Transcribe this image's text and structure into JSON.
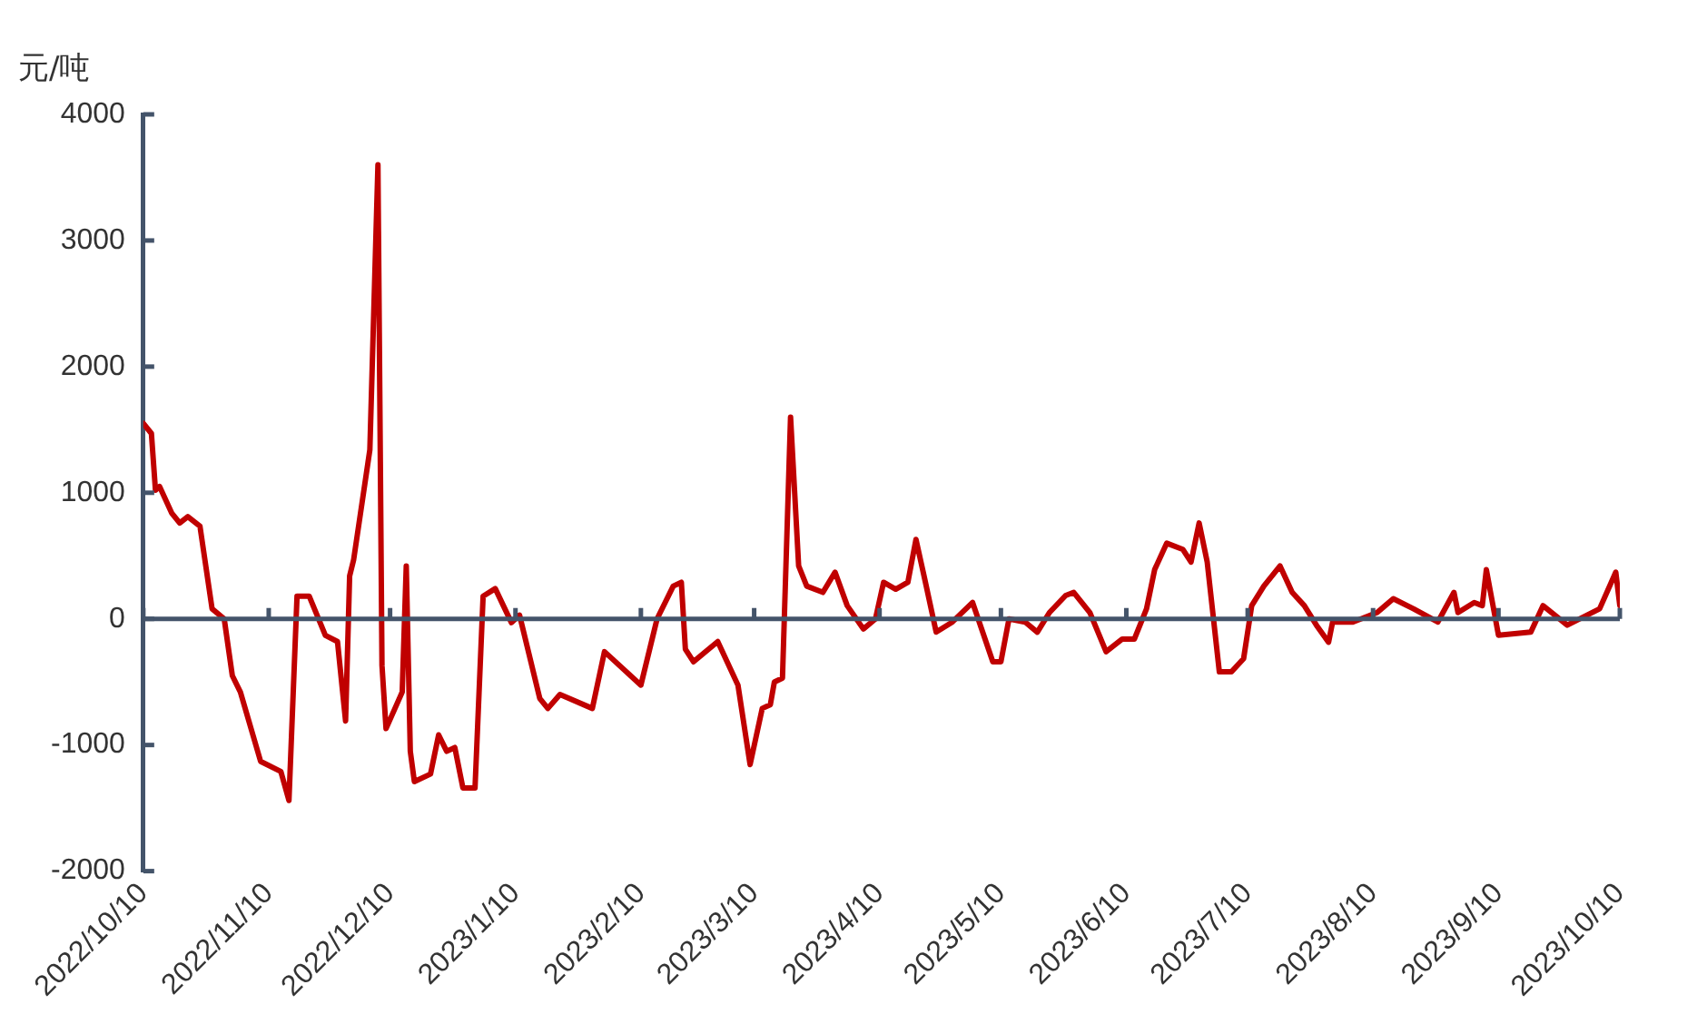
{
  "chart_data": {
    "type": "line",
    "ylabel": "元/吨",
    "x": [
      "2022-10-10",
      "2022-10-12",
      "2022-10-13",
      "2022-10-14",
      "2022-10-17",
      "2022-10-19",
      "2022-10-21",
      "2022-10-24",
      "2022-10-27",
      "2022-10-30",
      "2022-11-01",
      "2022-11-03",
      "2022-11-08",
      "2022-11-13",
      "2022-11-15",
      "2022-11-17",
      "2022-11-20",
      "2022-11-24",
      "2022-11-27",
      "2022-11-29",
      "2022-11-30",
      "2022-12-01",
      "2022-12-05",
      "2022-12-07",
      "2022-12-08",
      "2022-12-09",
      "2022-12-13",
      "2022-12-14",
      "2022-12-15",
      "2022-12-16",
      "2022-12-20",
      "2022-12-22",
      "2022-12-24",
      "2022-12-26",
      "2022-12-28",
      "2022-12-31",
      "2023-01-02",
      "2023-01-05",
      "2023-01-09",
      "2023-01-11",
      "2023-01-16",
      "2023-01-18",
      "2023-01-21",
      "2023-01-29",
      "2023-02-01",
      "2023-02-10",
      "2023-02-14",
      "2023-02-18",
      "2023-02-20",
      "2023-02-21",
      "2023-02-23",
      "2023-03-01",
      "2023-03-06",
      "2023-03-09",
      "2023-03-12",
      "2023-03-14",
      "2023-03-15",
      "2023-03-17",
      "2023-03-19",
      "2023-03-21",
      "2023-03-23",
      "2023-03-27",
      "2023-03-30",
      "2023-04-02",
      "2023-04-06",
      "2023-04-09",
      "2023-04-11",
      "2023-04-14",
      "2023-04-17",
      "2023-04-19",
      "2023-04-21",
      "2023-04-24",
      "2023-04-28",
      "2023-05-03",
      "2023-05-08",
      "2023-05-10",
      "2023-05-12",
      "2023-05-16",
      "2023-05-19",
      "2023-05-22",
      "2023-05-26",
      "2023-05-28",
      "2023-06-01",
      "2023-06-05",
      "2023-06-09",
      "2023-06-12",
      "2023-06-15",
      "2023-06-17",
      "2023-06-20",
      "2023-06-24",
      "2023-06-26",
      "2023-06-28",
      "2023-06-30",
      "2023-07-03",
      "2023-07-06",
      "2023-07-09",
      "2023-07-11",
      "2023-07-14",
      "2023-07-18",
      "2023-07-21",
      "2023-07-24",
      "2023-07-27",
      "2023-07-30",
      "2023-07-31",
      "2023-08-05",
      "2023-08-11",
      "2023-08-15",
      "2023-08-20",
      "2023-08-26",
      "2023-08-30",
      "2023-08-31",
      "2023-09-04",
      "2023-09-06",
      "2023-09-07",
      "2023-09-10",
      "2023-09-18",
      "2023-09-21",
      "2023-09-27",
      "2023-10-05",
      "2023-10-09",
      "2023-10-10"
    ],
    "series": [
      {
        "color": "#c00000",
        "values": [
          1550,
          1470,
          1020,
          1050,
          840,
          760,
          810,
          735,
          80,
          0,
          -450,
          -580,
          -1130,
          -1210,
          -1440,
          180,
          180,
          -130,
          -180,
          -810,
          340,
          470,
          1340,
          3600,
          -370,
          -870,
          -580,
          420,
          -1050,
          -1290,
          -1230,
          -920,
          -1050,
          -1020,
          -1340,
          -1340,
          180,
          240,
          -30,
          30,
          -630,
          -710,
          -600,
          -710,
          -260,
          -525,
          0,
          260,
          290,
          -240,
          -340,
          -180,
          -525,
          -1155,
          -710,
          -680,
          -500,
          -470,
          1600,
          420,
          260,
          210,
          370,
          105,
          -80,
          0,
          290,
          235,
          290,
          630,
          340,
          -105,
          -25,
          130,
          -340,
          -340,
          0,
          -25,
          -105,
          50,
          185,
          210,
          50,
          -260,
          -160,
          -160,
          80,
          390,
          600,
          550,
          450,
          760,
          450,
          -420,
          -420,
          -315,
          105,
          260,
          420,
          210,
          105,
          -50,
          -185,
          -25,
          -25,
          50,
          160,
          80,
          -25,
          210,
          50,
          130,
          105,
          390,
          -130,
          -105,
          105,
          -50,
          80,
          370,
          105
        ]
      }
    ],
    "xlim": [
      "2022-10-10",
      "2023-10-10"
    ],
    "xticks": [
      {
        "value": "2022-10-10",
        "label": "2022/10/10"
      },
      {
        "value": "2022-11-10",
        "label": "2022/11/10"
      },
      {
        "value": "2022-12-10",
        "label": "2022/12/10"
      },
      {
        "value": "2023-01-10",
        "label": "2023/1/10"
      },
      {
        "value": "2023-02-10",
        "label": "2023/2/10"
      },
      {
        "value": "2023-03-10",
        "label": "2023/3/10"
      },
      {
        "value": "2023-04-10",
        "label": "2023/4/10"
      },
      {
        "value": "2023-05-10",
        "label": "2023/5/10"
      },
      {
        "value": "2023-06-10",
        "label": "2023/6/10"
      },
      {
        "value": "2023-07-10",
        "label": "2023/7/10"
      },
      {
        "value": "2023-08-10",
        "label": "2023/8/10"
      },
      {
        "value": "2023-09-10",
        "label": "2023/9/10"
      },
      {
        "value": "2023-10-10",
        "label": "2023/10/10"
      }
    ],
    "ylim": [
      -2000,
      4000
    ],
    "yticks": [
      -2000,
      -1000,
      0,
      1000,
      2000,
      3000,
      4000
    ],
    "ref_lines": [
      {
        "axis": "y",
        "value": 0,
        "color": "#44546a"
      }
    ],
    "grid": false,
    "legend": false,
    "marker": "none",
    "line_style": "solid"
  }
}
